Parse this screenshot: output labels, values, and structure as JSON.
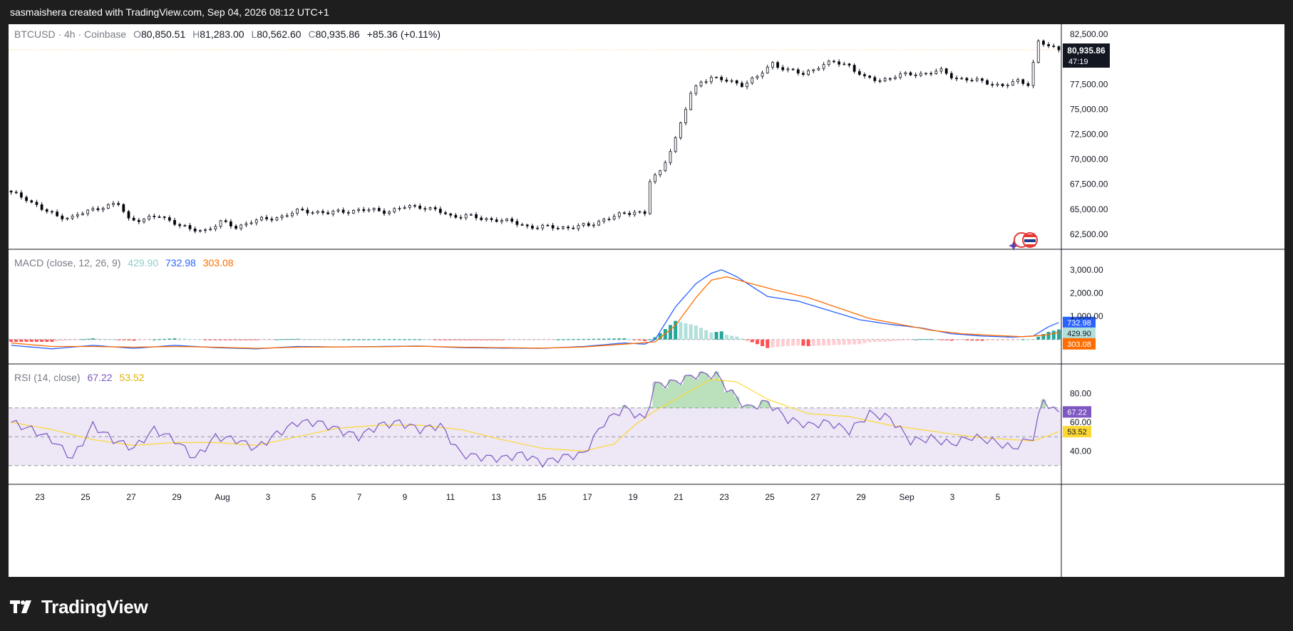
{
  "header": {
    "attribution": "sasmaishera created with TradingView.com, Sep 04, 2026 08:12 UTC+1"
  },
  "main_pane": {
    "symbol": "BTCUSD · 4h · Coinbase",
    "open_label": "O",
    "open": "80,850.51",
    "high_label": "H",
    "high": "81,283.00",
    "low_label": "L",
    "low": "80,562.60",
    "close_label": "C",
    "close": "80,935.86",
    "change": "+85.36 (+0.11%)",
    "price_tag": "80,935.86",
    "countdown": "47:19"
  },
  "macd_pane": {
    "title": "MACD (close, 12, 26, 9)",
    "histogram_value": "429.90",
    "macd_value": "732.98",
    "signal_value": "303.08"
  },
  "rsi_pane": {
    "title": "RSI (14, close)",
    "rsi_value": "67.22",
    "ma_value": "53.52"
  },
  "colors": {
    "up_candle": "#ffffff",
    "down_candle": "#000000",
    "macd_line": "#2962ff",
    "signal_line": "#ff6d00",
    "hist_up_strong": "#26a69a",
    "hist_up_weak": "#b2dfdb",
    "hist_down_strong": "#ff5252",
    "hist_down_weak": "#ffcdd2",
    "rsi_line": "#7e57c2",
    "rsi_ma": "#fdd835",
    "rsi_band": "#ede7f6"
  },
  "branding": {
    "logo_text": "TradingView"
  },
  "chart_data": [
    {
      "type": "candlestick",
      "title": "BTCUSD · 4h · Coinbase",
      "ylim": [
        61000,
        83500
      ],
      "y_ticks": [
        "82,500.00",
        "77,500.00",
        "75,000.00",
        "72,500.00",
        "70,000.00",
        "67,500.00",
        "65,000.00",
        "62,500.00"
      ],
      "x_ticks": [
        "23",
        "25",
        "27",
        "29",
        "Aug",
        "3",
        "5",
        "7",
        "9",
        "11",
        "13",
        "15",
        "17",
        "19",
        "21",
        "23",
        "25",
        "27",
        "29",
        "Sep",
        "3",
        "5"
      ],
      "close_path": [
        [
          0,
          66600
        ],
        [
          3,
          66100
        ],
        [
          6,
          65000
        ],
        [
          9,
          64300
        ],
        [
          12,
          64200
        ],
        [
          15,
          64800
        ],
        [
          18,
          65300
        ],
        [
          21,
          65500
        ],
        [
          23,
          64000
        ],
        [
          26,
          64000
        ],
        [
          29,
          64300
        ],
        [
          32,
          63700
        ],
        [
          35,
          62900
        ],
        [
          38,
          62900
        ],
        [
          41,
          63700
        ],
        [
          44,
          63200
        ],
        [
          47,
          63800
        ],
        [
          50,
          64000
        ],
        [
          53,
          64300
        ],
        [
          56,
          64800
        ],
        [
          59,
          64800
        ],
        [
          62,
          64600
        ],
        [
          65,
          64800
        ],
        [
          68,
          64900
        ],
        [
          71,
          64900
        ],
        [
          74,
          64800
        ],
        [
          77,
          65200
        ],
        [
          80,
          65300
        ],
        [
          83,
          64900
        ],
        [
          86,
          64300
        ],
        [
          89,
          64400
        ],
        [
          92,
          64000
        ],
        [
          95,
          64000
        ],
        [
          98,
          63700
        ],
        [
          101,
          63300
        ],
        [
          104,
          63200
        ],
        [
          107,
          63200
        ],
        [
          110,
          63200
        ],
        [
          113,
          63400
        ],
        [
          116,
          64000
        ],
        [
          119,
          64400
        ],
        [
          122,
          64800
        ],
        [
          124,
          64600
        ],
        [
          125,
          67800
        ],
        [
          127,
          68700
        ],
        [
          130,
          72100
        ],
        [
          133,
          76500
        ],
        [
          135,
          77800
        ],
        [
          137,
          78200
        ],
        [
          140,
          77800
        ],
        [
          143,
          77500
        ],
        [
          146,
          78200
        ],
        [
          149,
          79600
        ],
        [
          152,
          78900
        ],
        [
          155,
          78500
        ],
        [
          158,
          79300
        ],
        [
          161,
          79700
        ],
        [
          164,
          79400
        ],
        [
          167,
          78100
        ],
        [
          170,
          77900
        ],
        [
          173,
          78300
        ],
        [
          176,
          78500
        ],
        [
          179,
          78600
        ],
        [
          182,
          78800
        ],
        [
          185,
          78100
        ],
        [
          188,
          77900
        ],
        [
          191,
          77700
        ],
        [
          194,
          77300
        ],
        [
          197,
          77800
        ],
        [
          199,
          77600
        ],
        [
          201,
          81700
        ],
        [
          203,
          81300
        ],
        [
          205,
          80900
        ]
      ],
      "last_close": 80935.86
    },
    {
      "type": "line",
      "title": "MACD (close, 12, 26, 9)",
      "ylim": [
        -1050,
        3850
      ],
      "y_ticks": [
        "3,000.00",
        "2,000.00",
        "1,000.00"
      ],
      "series": [
        {
          "name": "MACD",
          "points": [
            [
              0,
              -250
            ],
            [
              8,
              -400
            ],
            [
              16,
              -250
            ],
            [
              24,
              -380
            ],
            [
              32,
              -250
            ],
            [
              40,
              -350
            ],
            [
              48,
              -400
            ],
            [
              56,
              -300
            ],
            [
              64,
              -320
            ],
            [
              72,
              -300
            ],
            [
              80,
              -280
            ],
            [
              88,
              -350
            ],
            [
              96,
              -370
            ],
            [
              104,
              -380
            ],
            [
              112,
              -300
            ],
            [
              120,
              -150
            ],
            [
              124,
              -200
            ],
            [
              126,
              0
            ],
            [
              130,
              1400
            ],
            [
              134,
              2400
            ],
            [
              137,
              2850
            ],
            [
              139,
              3000
            ],
            [
              142,
              2700
            ],
            [
              148,
              1850
            ],
            [
              154,
              1650
            ],
            [
              160,
              1250
            ],
            [
              166,
              850
            ],
            [
              172,
              650
            ],
            [
              178,
              500
            ],
            [
              184,
              250
            ],
            [
              190,
              150
            ],
            [
              196,
              100
            ],
            [
              200,
              150
            ],
            [
              203,
              550
            ],
            [
              205,
              732.98
            ]
          ]
        },
        {
          "name": "Signal",
          "points": [
            [
              0,
              -150
            ],
            [
              8,
              -300
            ],
            [
              16,
              -300
            ],
            [
              24,
              -330
            ],
            [
              32,
              -300
            ],
            [
              40,
              -330
            ],
            [
              48,
              -380
            ],
            [
              56,
              -330
            ],
            [
              64,
              -320
            ],
            [
              72,
              -310
            ],
            [
              80,
              -290
            ],
            [
              88,
              -330
            ],
            [
              96,
              -350
            ],
            [
              104,
              -370
            ],
            [
              112,
              -320
            ],
            [
              120,
              -200
            ],
            [
              126,
              -100
            ],
            [
              130,
              600
            ],
            [
              134,
              1800
            ],
            [
              137,
              2550
            ],
            [
              140,
              2700
            ],
            [
              144,
              2450
            ],
            [
              150,
              2100
            ],
            [
              156,
              1800
            ],
            [
              162,
              1350
            ],
            [
              168,
              900
            ],
            [
              174,
              650
            ],
            [
              180,
              400
            ],
            [
              186,
              250
            ],
            [
              192,
              180
            ],
            [
              198,
              120
            ],
            [
              202,
              180
            ],
            [
              205,
              303.08
            ]
          ]
        }
      ],
      "histogram_last": 429.9
    },
    {
      "type": "line",
      "title": "RSI (14, close)",
      "ylim": [
        20,
        100
      ],
      "y_ticks": [
        "80.00",
        "60.00",
        "40.00"
      ],
      "bands": [
        70,
        50,
        30
      ],
      "series": [
        {
          "name": "RSI",
          "points": [
            [
              0,
              60
            ],
            [
              4,
              55
            ],
            [
              8,
              48
            ],
            [
              12,
              35
            ],
            [
              16,
              58
            ],
            [
              20,
              48
            ],
            [
              24,
              42
            ],
            [
              28,
              55
            ],
            [
              32,
              48
            ],
            [
              36,
              35
            ],
            [
              40,
              50
            ],
            [
              44,
              48
            ],
            [
              48,
              42
            ],
            [
              52,
              52
            ],
            [
              56,
              60
            ],
            [
              60,
              60
            ],
            [
              64,
              55
            ],
            [
              68,
              50
            ],
            [
              72,
              58
            ],
            [
              76,
              60
            ],
            [
              80,
              55
            ],
            [
              84,
              58
            ],
            [
              88,
              38
            ],
            [
              92,
              36
            ],
            [
              96,
              35
            ],
            [
              100,
              38
            ],
            [
              104,
              32
            ],
            [
              108,
              36
            ],
            [
              112,
              38
            ],
            [
              116,
              60
            ],
            [
              120,
              70
            ],
            [
              124,
              62
            ],
            [
              126,
              86
            ],
            [
              130,
              88
            ],
            [
              134,
              93
            ],
            [
              138,
              93
            ],
            [
              140,
              84
            ],
            [
              144,
              70
            ],
            [
              148,
              74
            ],
            [
              152,
              62
            ],
            [
              156,
              58
            ],
            [
              160,
              60
            ],
            [
              164,
              54
            ],
            [
              168,
              66
            ],
            [
              172,
              63
            ],
            [
              176,
              47
            ],
            [
              180,
              49
            ],
            [
              184,
              45
            ],
            [
              188,
              50
            ],
            [
              192,
              47
            ],
            [
              196,
              42
            ],
            [
              200,
              50
            ],
            [
              202,
              76
            ],
            [
              204,
              68
            ],
            [
              205,
              67.22
            ]
          ]
        },
        {
          "name": "RSI-based MA",
          "points": [
            [
              0,
              60
            ],
            [
              8,
              55
            ],
            [
              16,
              48
            ],
            [
              24,
              44
            ],
            [
              32,
              46
            ],
            [
              40,
              46
            ],
            [
              48,
              44
            ],
            [
              56,
              50
            ],
            [
              64,
              56
            ],
            [
              72,
              58
            ],
            [
              80,
              58
            ],
            [
              88,
              55
            ],
            [
              96,
              48
            ],
            [
              104,
              42
            ],
            [
              112,
              40
            ],
            [
              118,
              45
            ],
            [
              122,
              58
            ],
            [
              126,
              68
            ],
            [
              132,
              80
            ],
            [
              137,
              90
            ],
            [
              142,
              88
            ],
            [
              148,
              76
            ],
            [
              156,
              66
            ],
            [
              164,
              64
            ],
            [
              172,
              58
            ],
            [
              180,
              54
            ],
            [
              188,
              50
            ],
            [
              196,
              48
            ],
            [
              200,
              47
            ],
            [
              205,
              53.52
            ]
          ]
        }
      ]
    }
  ]
}
